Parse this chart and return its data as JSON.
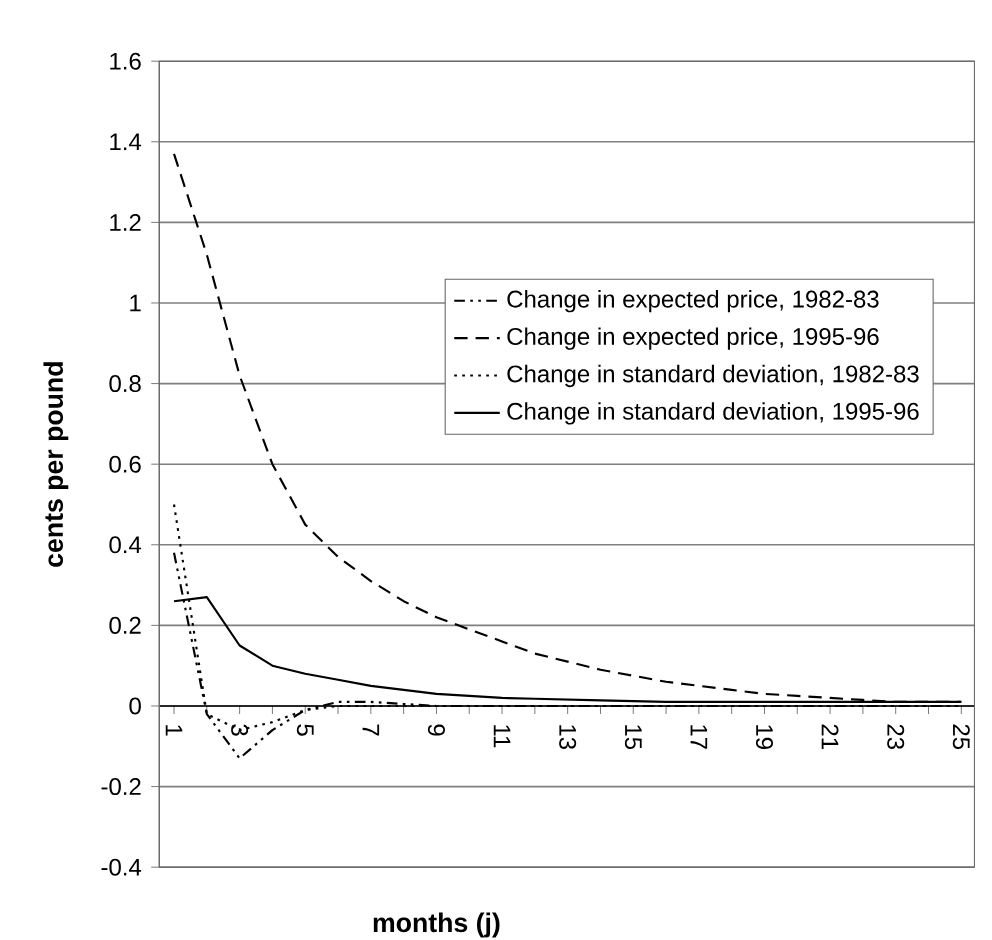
{
  "chart_data": {
    "type": "line",
    "xlabel": "months (j)",
    "ylabel": "cents per pound",
    "categories": [
      "1",
      null,
      "3",
      null,
      "5",
      null,
      "7",
      null,
      "9",
      null,
      "11",
      null,
      "13",
      null,
      "15",
      null,
      "17",
      null,
      "19",
      null,
      "21",
      null,
      "23",
      null,
      "25"
    ],
    "series": [
      {
        "name": "Change in expected price, 1982-83",
        "color": "#000000",
        "line_style": "dashdot",
        "values": [
          0.38,
          -0.02,
          -0.13,
          -0.06,
          -0.01,
          0.01,
          0.01,
          0.005,
          0,
          0,
          0,
          0,
          0,
          0,
          0,
          0,
          0,
          0,
          0,
          0,
          0,
          0,
          0,
          0,
          0
        ]
      },
      {
        "name": "Change in expected price, 1995-96",
        "color": "#000000",
        "line_style": "dashed",
        "values": [
          1.37,
          1.12,
          0.82,
          0.6,
          0.45,
          0.37,
          0.31,
          0.26,
          0.22,
          0.19,
          0.16,
          0.13,
          0.11,
          0.09,
          0.075,
          0.06,
          0.05,
          0.04,
          0.03,
          0.025,
          0.02,
          0.015,
          0.01,
          0.01,
          0.01
        ]
      },
      {
        "name": "Change in standard deviation, 1982-83",
        "color": "#000000",
        "line_style": "dotted",
        "values": [
          0.5,
          -0.02,
          -0.06,
          -0.04,
          -0.01,
          0,
          0,
          0,
          0,
          0,
          0,
          0,
          0,
          0,
          0,
          0,
          0,
          0,
          0,
          0,
          0,
          0,
          0,
          0,
          0
        ]
      },
      {
        "name": "Change in standard deviation, 1995-96",
        "color": "#000000",
        "line_style": "solid",
        "values": [
          0.26,
          0.27,
          0.15,
          0.1,
          0.08,
          0.065,
          0.05,
          0.04,
          0.03,
          0.025,
          0.02,
          0.018,
          0.016,
          0.014,
          0.012,
          0.01,
          0.01,
          0.01,
          0.01,
          0.01,
          0.01,
          0.01,
          0.01,
          0.01,
          0.01
        ]
      }
    ],
    "ylim": [
      -0.4,
      1.6
    ],
    "yticks": [
      -0.4,
      -0.2,
      0,
      0.2,
      0.4,
      0.6,
      0.8,
      1,
      1.2,
      1.4,
      1.6
    ],
    "grid": "y",
    "legend": "right",
    "marker": "none"
  }
}
